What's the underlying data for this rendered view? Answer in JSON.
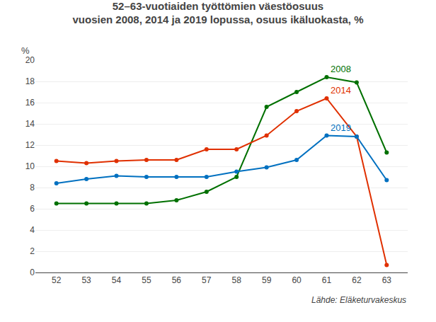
{
  "chart_data": {
    "type": "line",
    "title": "52–63-vuotiaiden työttömien väestöosuus\nvuosien 2008, 2014 ja 2019 lopussa, osuus ikäluokasta, %",
    "ylabel": "%",
    "x": [
      52,
      53,
      54,
      55,
      56,
      57,
      58,
      59,
      60,
      61,
      62,
      63
    ],
    "series": [
      {
        "name": "2008",
        "color": "#007000",
        "values": [
          6.5,
          6.5,
          6.5,
          6.5,
          6.8,
          7.6,
          9.0,
          15.6,
          17.0,
          18.4,
          17.9,
          11.3
        ]
      },
      {
        "name": "2014",
        "color": "#e03000",
        "values": [
          10.5,
          10.3,
          10.5,
          10.6,
          10.6,
          11.6,
          11.6,
          12.9,
          15.2,
          16.4,
          12.8,
          0.7
        ]
      },
      {
        "name": "2019",
        "color": "#0070c0",
        "values": [
          8.4,
          8.8,
          9.1,
          9.0,
          9.0,
          9.0,
          9.5,
          9.9,
          10.6,
          12.9,
          12.8,
          8.7
        ]
      }
    ],
    "xlim": [
      51.3,
      63.7
    ],
    "xticks": [
      52,
      53,
      54,
      55,
      56,
      57,
      58,
      59,
      60,
      61,
      62,
      63
    ],
    "ylim": [
      0,
      20
    ],
    "yticks": [
      0,
      2,
      4,
      6,
      8,
      10,
      12,
      14,
      16,
      18,
      20
    ],
    "grid": "y",
    "marker": "circle",
    "line_style": "solid",
    "annotations": [
      "Lähde: Eläketurvakeskus"
    ]
  }
}
